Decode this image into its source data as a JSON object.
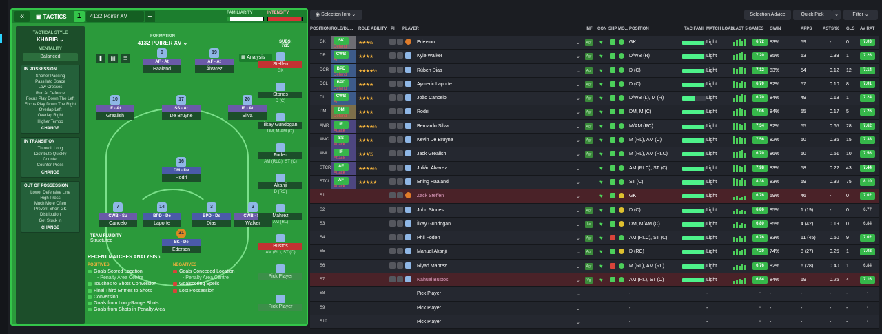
{
  "tactics": {
    "back_icon": "double-chevron-left-icon",
    "label": "TACTICS",
    "number": "1",
    "name": "4132 Poirer XV",
    "add": "+",
    "familiarity": "FAMILIARITY",
    "intensity": "INTENSITY",
    "familiarity_level": 0.08,
    "intensity_level": 0.95,
    "style_label": "TACTICAL STYLE",
    "style_value": "KHABIB",
    "mentality_label": "MENTALITY",
    "mentality_value": "Balanced",
    "in_possession": {
      "title": "IN POSSESSION",
      "items": [
        "Shorter Passing",
        "Pass Into Space",
        "Low Crosses",
        "Run At Defence",
        "Focus Play Down The Left",
        "Focus Play Down The Right",
        "Overlap Left",
        "Overlap Right",
        "Higher Tempo"
      ],
      "change": "CHANGE"
    },
    "in_transition": {
      "title": "IN TRANSITION",
      "items": [
        "Throw It Long",
        "Distribute Quickly",
        "Counter",
        "Counter-Press"
      ],
      "change": "CHANGE"
    },
    "out_possession": {
      "title": "OUT OF POSSESSION",
      "items": [
        "Lower Defensive Line",
        "High Press",
        "Much More Often",
        "Prevent Short GK",
        "Distribution",
        "Get Stuck In"
      ],
      "change": "CHANGE"
    },
    "formation_label": "FORMATION",
    "formation_name": "4132 POIRER XV",
    "analysis": "Analysis",
    "subs_label": "SUBS:",
    "subs_count": "7/15",
    "fluidity_label": "TEAM FLUIDITY",
    "fluidity_value": "Structured",
    "recent": "RECENT MATCHES ANALYSIS",
    "positives_label": "POSITIVES",
    "negatives_label": "NEGATIVES",
    "positives": [
      "Goals Scored Location",
      "- Penalty Area Centre",
      "Touches to Shots Conversion",
      "Final Third Entries to Shots",
      "Conversion",
      "Goals from Long-Range Shots",
      "Goals from Shots in Penalty Area"
    ],
    "negatives": [
      "Goals Conceded Location",
      "- Penalty Area Centre",
      "Goalscoring Spells",
      "Lost Possession"
    ]
  },
  "pitch_players": [
    {
      "num": "9",
      "role": "AF - At",
      "name": "Haaland"
    },
    {
      "num": "19",
      "role": "AF - At",
      "name": "Álvarez"
    },
    {
      "num": "10",
      "role": "IF - At",
      "name": "Grealish"
    },
    {
      "num": "17",
      "role": "SS - At",
      "name": "De Bruyne"
    },
    {
      "num": "20",
      "role": "IF - At",
      "name": "Silva"
    },
    {
      "num": "16",
      "role": "DM - De",
      "name": "Rodri"
    },
    {
      "num": "7",
      "role": "CWB - Su",
      "name": "Cancelo"
    },
    {
      "num": "14",
      "role": "BPD - De",
      "name": "Laporte"
    },
    {
      "num": "3",
      "role": "BPD - De",
      "name": "Dias"
    },
    {
      "num": "2",
      "role": "CWB - Su",
      "name": "Walker"
    },
    {
      "num": "31",
      "role": "SK - De",
      "name": "Ederson"
    }
  ],
  "subs": [
    {
      "name": "Steffen",
      "pos": "GK"
    },
    {
      "name": "Stones",
      "pos": "D (C)"
    },
    {
      "name": "İlkay Gündogan",
      "pos": "DM, M/AM (C)"
    },
    {
      "name": "Foden",
      "pos": "AM (RLC), ST (C)"
    },
    {
      "name": "Akanji",
      "pos": "D (RC)"
    },
    {
      "name": "Mahrez",
      "pos": "AM (RL)"
    },
    {
      "name": "Bustos",
      "pos": "AM (RL), ST (C)"
    },
    {
      "name": "Pick Player",
      "pos": ""
    },
    {
      "name": "Pick Player",
      "pos": ""
    }
  ],
  "right": {
    "selection_info": "Selection Info",
    "selection_advice": "Selection Advice",
    "quick_pick": "Quick Pick",
    "filter": "Filter",
    "cols": {
      "pos": "POSITION/ROLE/DU...",
      "role_ability": "ROLE ABILITY",
      "pi": "PI",
      "player": "PLAYER",
      "inf": "INF",
      "con": "CON",
      "shp": "SHP",
      "mo": "MO...",
      "position": "POSITION",
      "tac_fami": "TAC FAMI",
      "match_load": "MATCH LOAD",
      "last5": "LAST 5 GAMES",
      "gwin": "GWIN",
      "apps": "APPS",
      "asts": "ASTS/90",
      "gls": "GLS",
      "avrat": "AV RAT"
    }
  },
  "rows": [
    {
      "pos": "GK",
      "role": "SK",
      "duty": "Defend",
      "stars": "★★★½",
      "name": "Ederson",
      "inf": "Agr",
      "posn": "GK",
      "tf": 0.95,
      "load": "Light",
      "rt": "6.72",
      "gwin": "83%",
      "apps": "59",
      "asts": "-",
      "gls": "0",
      "avr": "7.03"
    },
    {
      "pos": "DR",
      "role": "CWB",
      "duty": "Su",
      "stars": "★★★★",
      "name": "Kyle Walker",
      "inf": "Agr",
      "posn": "D/WB (R)",
      "tf": 0.95,
      "load": "Light",
      "rt": "7.20",
      "gwin": "85%",
      "apps": "53",
      "asts": "0.33",
      "gls": "1",
      "avr": "7.26"
    },
    {
      "pos": "DCR",
      "role": "BPD",
      "duty": "Defend",
      "stars": "★★★★½",
      "name": "Rúben Dias",
      "inf": "Agr",
      "posn": "D (C)",
      "tf": 0.95,
      "load": "Light",
      "rt": "7.12",
      "gwin": "83%",
      "apps": "54",
      "asts": "0.12",
      "gls": "12",
      "avr": "7.14"
    },
    {
      "pos": "DCL",
      "role": "BPD",
      "duty": "Defend",
      "stars": "★★★★",
      "name": "Aymeric Laporte",
      "inf": "Agr",
      "posn": "D (C)",
      "tf": 0.95,
      "load": "Light",
      "rt": "6.70",
      "gwin": "82%",
      "apps": "57",
      "asts": "0.10",
      "gls": "8",
      "avr": "7.01"
    },
    {
      "pos": "DL",
      "role": "CWB",
      "duty": "Su",
      "stars": "★★★★",
      "name": "João Cancelo",
      "inf": "Agr",
      "posn": "D/WB (L), M (R)",
      "tf": 0.55,
      "load": "Light",
      "rt": "6.70",
      "gwin": "84%",
      "apps": "49",
      "asts": "0.18",
      "gls": "1",
      "avr": "7.24"
    },
    {
      "pos": "DM",
      "role": "DM",
      "duty": "Defend",
      "stars": "★★★★",
      "name": "Rodri",
      "inf": "Agr",
      "posn": "DM, M (C)",
      "tf": 0.95,
      "load": "Light",
      "rt": "7.06",
      "gwin": "84%",
      "apps": "55",
      "asts": "0.17",
      "gls": "5",
      "avr": "7.26"
    },
    {
      "pos": "AMR",
      "role": "IF",
      "duty": "Attack",
      "stars": "★★★★½",
      "name": "Bernardo Silva",
      "inf": "Agr",
      "posn": "M/AM (RC)",
      "tf": 0.95,
      "load": "Light",
      "rt": "7.34",
      "gwin": "82%",
      "apps": "55",
      "asts": "0.65",
      "gls": "28",
      "avr": "7.62"
    },
    {
      "pos": "AMC",
      "role": "SS",
      "duty": "Attack",
      "stars": "★★★★",
      "name": "Kevin De Bruyne",
      "inf": "Agr",
      "posn": "M (RL), AM (C)",
      "tf": 0.95,
      "load": "Light",
      "rt": "7.56",
      "gwin": "82%",
      "apps": "50",
      "asts": "0.35",
      "gls": "15",
      "avr": "7.38"
    },
    {
      "pos": "AML",
      "role": "IF",
      "duty": "Attack",
      "stars": "★★★½",
      "name": "Jack Grealish",
      "inf": "Agr",
      "posn": "M (RL), AM (RLC)",
      "tf": 0.95,
      "load": "Light",
      "rt": "6.70",
      "gwin": "86%",
      "apps": "50",
      "asts": "0.51",
      "gls": "10",
      "avr": "7.56"
    },
    {
      "pos": "STCR",
      "role": "AF",
      "duty": "Attack",
      "stars": "★★★★½",
      "name": "Julián Álvarez",
      "inf": "",
      "posn": "AM (RLC), ST (C)",
      "tf": 0.95,
      "load": "Light",
      "rt": "7.98",
      "gwin": "83%",
      "apps": "58",
      "asts": "0.22",
      "gls": "43",
      "avr": "7.44"
    },
    {
      "pos": "STCL",
      "role": "AF",
      "duty": "Attack",
      "stars": "★★★★★",
      "name": "Erling Haaland",
      "inf": "",
      "posn": "ST (C)",
      "tf": 0.95,
      "load": "Light",
      "rt": "8.38",
      "gwin": "83%",
      "apps": "59",
      "asts": "0.32",
      "gls": "75",
      "avr": "8.10"
    },
    {
      "pos": "S1",
      "role": "",
      "duty": "",
      "stars": "",
      "name": "Zack Steffen",
      "inf": "",
      "posn": "GK",
      "tf": 0.95,
      "load": "Light",
      "rt": "6.76",
      "gwin": "59%",
      "apps": "46",
      "asts": "-",
      "gls": "0",
      "avr": "7.02"
    },
    {
      "pos": "S2",
      "role": "",
      "duty": "",
      "stars": "",
      "name": "John Stones",
      "inf": "Agr",
      "posn": "D (C)",
      "tf": 0.95,
      "load": "Light",
      "rt": "6.86",
      "gwin": "85%",
      "apps": "1 (19)",
      "asts": "-",
      "gls": "0",
      "avr": "6.77"
    },
    {
      "pos": "S3",
      "role": "",
      "duty": "",
      "stars": "",
      "name": "İlkay Gündogan",
      "inf": "Le",
      "posn": "DM, M/AM (C)",
      "tf": 0.95,
      "load": "Light",
      "rt": "6.80",
      "gwin": "85%",
      "apps": "4 (42)",
      "asts": "0.19",
      "gls": "0",
      "avr": "6.84"
    },
    {
      "pos": "S4",
      "role": "",
      "duty": "",
      "stars": "",
      "name": "Phil Foden",
      "inf": "Agr",
      "posn": "AM (RLC), ST (C)",
      "tf": 0.95,
      "load": "Light",
      "rt": "6.76",
      "gwin": "83%",
      "apps": "11 (45)",
      "asts": "0.50",
      "gls": "9",
      "avr": "7.02"
    },
    {
      "pos": "S5",
      "role": "",
      "duty": "",
      "stars": "",
      "name": "Manuel Akanji",
      "inf": "Agr",
      "posn": "D (RC)",
      "tf": 0.95,
      "load": "Light",
      "rt": "7.20",
      "gwin": "74%",
      "apps": "8 (27)",
      "asts": "0.25",
      "gls": "1",
      "avr": "7.02"
    },
    {
      "pos": "S6",
      "role": "",
      "duty": "",
      "stars": "",
      "name": "Riyad Mahrez",
      "inf": "Agr",
      "posn": "M (RL), AM (RL)",
      "tf": 0.95,
      "load": "Light",
      "rt": "6.76",
      "gwin": "82%",
      "apps": "6 (28)",
      "asts": "0.40",
      "gls": "1",
      "avr": "6.84"
    },
    {
      "pos": "S7",
      "role": "",
      "duty": "",
      "stars": "",
      "name": "Nahuel Bustos",
      "inf": "Vg",
      "posn": "AM (RL), ST (C)",
      "tf": 0.95,
      "load": "Light",
      "rt": "6.84",
      "gwin": "84%",
      "apps": "19",
      "asts": "0.25",
      "gls": "4",
      "avr": "7.16"
    },
    {
      "pos": "S8",
      "role": "",
      "duty": "",
      "stars": "",
      "name": "Pick Player",
      "inf": "",
      "posn": "-",
      "tf": 0,
      "load": "-",
      "rt": "-",
      "gwin": "-",
      "apps": "-",
      "asts": "-",
      "gls": "-",
      "avr": "-"
    },
    {
      "pos": "S9",
      "role": "",
      "duty": "",
      "stars": "",
      "name": "Pick Player",
      "inf": "",
      "posn": "-",
      "tf": 0,
      "load": "-",
      "rt": "-",
      "gwin": "-",
      "apps": "-",
      "asts": "-",
      "gls": "-",
      "avr": "-"
    },
    {
      "pos": "S10",
      "role": "",
      "duty": "",
      "stars": "",
      "name": "Pick Player",
      "inf": "",
      "posn": "-",
      "tf": 0,
      "load": "-",
      "rt": "-",
      "gwin": "-",
      "apps": "-",
      "asts": "-",
      "gls": "-",
      "avr": "-"
    }
  ]
}
